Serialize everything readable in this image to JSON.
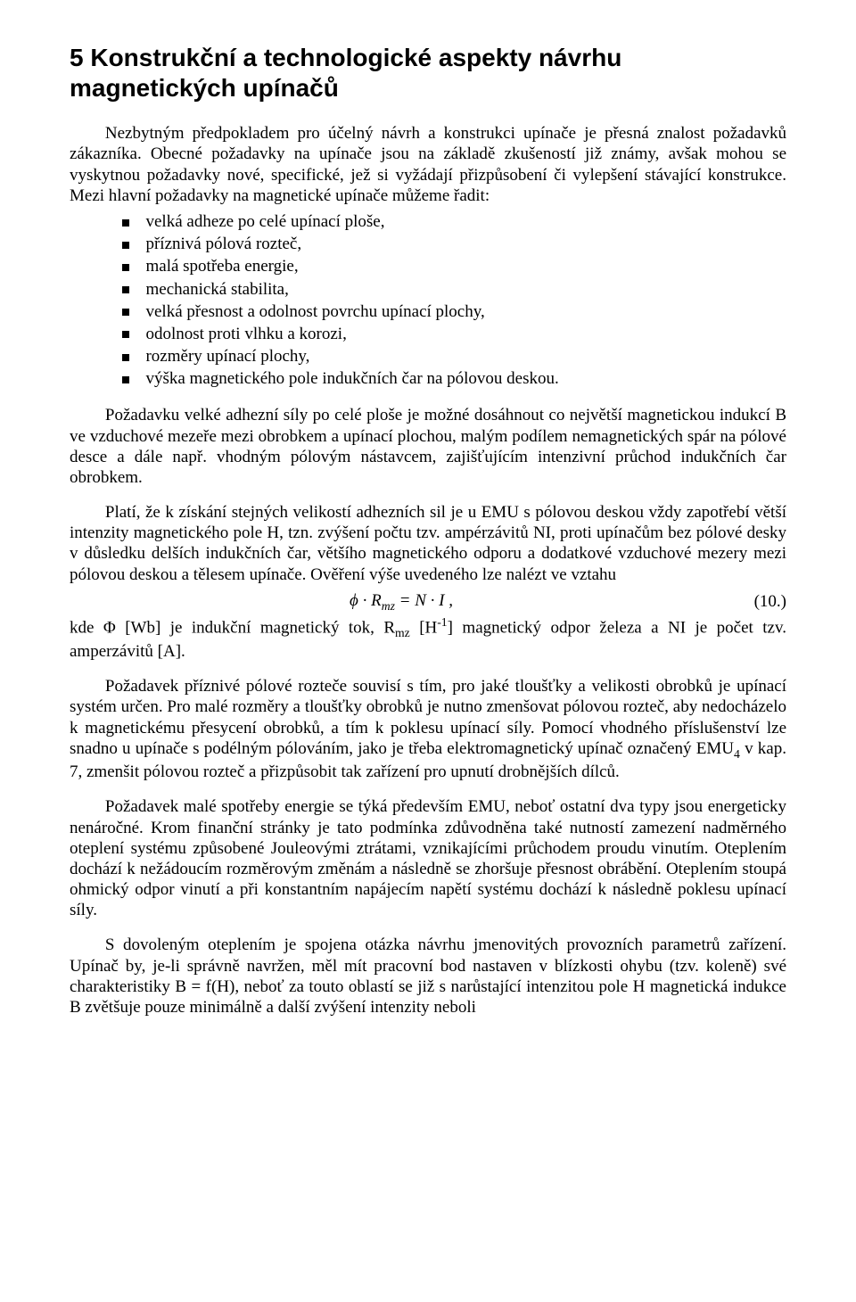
{
  "heading": "5  Konstrukční a technologické aspekty návrhu magnetických upínačů",
  "para1": "Nezbytným předpokladem pro účelný návrh a konstrukci upínače je přesná znalost požadavků zákazníka. Obecné požadavky na upínače jsou na základě zkušeností již známy, avšak mohou se vyskytnou požadavky nové, specifické, jež si vyžádají přizpůsobení či vylepšení stávající konstrukce. Mezi hlavní požadavky na magnetické upínače můžeme řadit:",
  "bullets": [
    "velká adheze po celé upínací ploše,",
    "příznivá pólová rozteč,",
    "malá spotřeba energie,",
    "mechanická stabilita,",
    "velká přesnost a odolnost povrchu upínací plochy,",
    "odolnost proti vlhku a korozi,",
    "rozměry upínací plochy,",
    "výška magnetického pole indukčních čar na pólovou deskou."
  ],
  "para2": "Požadavku velké adhezní síly po celé ploše je možné dosáhnout co největší magnetickou indukcí B ve vzduchové mezeře mezi obrobkem a upínací plochou, malým podílem nemagnetických spár na pólové desce a dále např. vhodným pólovým nástavcem, zajišťujícím intenzivní průchod indukčních čar obrobkem.",
  "para3a": "Platí, že k získání stejných velikostí adhezních sil je u EMU s pólovou deskou vždy zapotřebí větší intenzity magnetického pole H, tzn. zvýšení počtu tzv. ampérzávitů NI, proti upínačům bez pólové desky v důsledku delších indukčních čar, většího magnetického odporu a dodatkové vzduchové mezery mezi pólovou deskou a tělesem upínače. Ověření výše uvedeného lze nalézt ve vztahu",
  "equation": "ϕ · R_mz = N · I ,",
  "equation_number": "(10.)",
  "para3b_prefix": "kde Φ [Wb] je indukční magnetický tok, R",
  "para3b_sub": "mz",
  "para3b_mid": " [H",
  "para3b_sup": "-1",
  "para3b_suffix": "] magnetický odpor železa a NI je počet tzv. amperzávitů [A].",
  "para4_prefix": "Požadavek příznivé pólové rozteče souvisí s tím, pro jaké tloušťky a velikosti obrobků je upínací systém určen. Pro malé rozměry a tloušťky obrobků je nutno zmenšovat pólovou rozteč, aby nedocházelo k magnetickému přesycení obrobků, a tím k poklesu upínací síly. Pomocí vhodného příslušenství lze snadno u upínače s podélným pólováním, jako je třeba elektromagnetický upínač označený EMU",
  "para4_sub": "4",
  "para4_suffix": " v kap. 7, zmenšit pólovou rozteč a přizpůsobit tak zařízení pro upnutí drobnějších dílců.",
  "para5": "Požadavek malé spotřeby energie se týká především EMU, neboť ostatní dva typy jsou energeticky nenáročné. Krom finanční stránky je tato podmínka zdůvodněna také nutností zamezení nadměrného oteplení systému způsobené Jouleovými ztrátami, vznikajícími průchodem proudu vinutím. Oteplením dochází k nežádoucím rozměrovým změnám a následně se zhoršuje přesnost obrábění. Oteplením stoupá ohmický odpor vinutí a při konstantním napájecím napětí systému dochází k následně poklesu upínací síly.",
  "para6": "S dovoleným oteplením je spojena otázka návrhu jmenovitých provozních parametrů zařízení. Upínač by, je-li správně navržen, měl mít pracovní bod nastaven v blízkosti ohybu (tzv. koleně) své charakteristiky B = f(H), neboť za touto oblastí se již s narůstající intenzitou pole H magnetická indukce B zvětšuje pouze minimálně a další zvýšení intenzity neboli"
}
